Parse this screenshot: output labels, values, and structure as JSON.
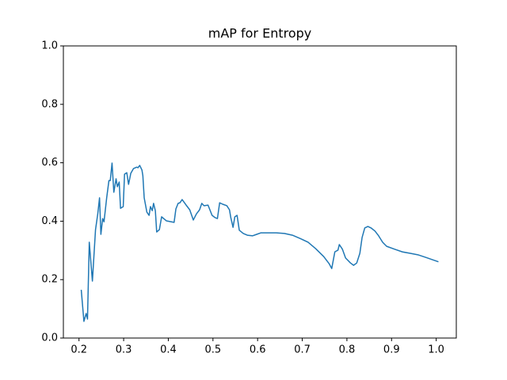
{
  "chart_data": {
    "type": "line",
    "title": "mAP for Entropy",
    "x": [
      0.205,
      0.211,
      0.216,
      0.219,
      0.223,
      0.23,
      0.237,
      0.242,
      0.246,
      0.249,
      0.253,
      0.256,
      0.262,
      0.267,
      0.27,
      0.274,
      0.278,
      0.283,
      0.286,
      0.29,
      0.293,
      0.299,
      0.302,
      0.307,
      0.311,
      0.316,
      0.322,
      0.329,
      0.332,
      0.336,
      0.341,
      0.343,
      0.346,
      0.352,
      0.357,
      0.36,
      0.364,
      0.367,
      0.371,
      0.374,
      0.38,
      0.385,
      0.396,
      0.413,
      0.417,
      0.422,
      0.426,
      0.431,
      0.44,
      0.448,
      0.456,
      0.463,
      0.47,
      0.475,
      0.48,
      0.489,
      0.498,
      0.505,
      0.51,
      0.515,
      0.522,
      0.531,
      0.537,
      0.54,
      0.545,
      0.549,
      0.554,
      0.559,
      0.568,
      0.577,
      0.589,
      0.598,
      0.607,
      0.625,
      0.642,
      0.66,
      0.678,
      0.695,
      0.713,
      0.73,
      0.748,
      0.76,
      0.766,
      0.773,
      0.78,
      0.783,
      0.79,
      0.797,
      0.808,
      0.815,
      0.822,
      0.829,
      0.834,
      0.84,
      0.847,
      0.854,
      0.863,
      0.871,
      0.88,
      0.889,
      0.907,
      0.924,
      0.942,
      0.959,
      0.977,
      1.005
    ],
    "series": [
      {
        "name": "mAP",
        "color": "#1f77b4",
        "values": [
          0.165,
          0.057,
          0.084,
          0.065,
          0.328,
          0.195,
          0.371,
          0.425,
          0.48,
          0.355,
          0.409,
          0.398,
          0.48,
          0.539,
          0.539,
          0.599,
          0.499,
          0.545,
          0.518,
          0.534,
          0.444,
          0.45,
          0.561,
          0.566,
          0.526,
          0.564,
          0.58,
          0.585,
          0.583,
          0.591,
          0.575,
          0.556,
          0.48,
          0.431,
          0.42,
          0.45,
          0.436,
          0.461,
          0.436,
          0.363,
          0.371,
          0.415,
          0.401,
          0.396,
          0.442,
          0.461,
          0.463,
          0.474,
          0.455,
          0.439,
          0.404,
          0.425,
          0.439,
          0.461,
          0.453,
          0.455,
          0.42,
          0.412,
          0.409,
          0.463,
          0.458,
          0.453,
          0.439,
          0.412,
          0.379,
          0.415,
          0.42,
          0.369,
          0.358,
          0.352,
          0.35,
          0.355,
          0.36,
          0.36,
          0.36,
          0.358,
          0.352,
          0.341,
          0.328,
          0.306,
          0.279,
          0.255,
          0.238,
          0.295,
          0.301,
          0.32,
          0.304,
          0.274,
          0.257,
          0.249,
          0.257,
          0.29,
          0.344,
          0.377,
          0.382,
          0.377,
          0.366,
          0.35,
          0.328,
          0.314,
          0.304,
          0.295,
          0.29,
          0.285,
          0.276,
          0.261
        ]
      }
    ],
    "xlim": [
      0.165,
      1.045
    ],
    "ylim": [
      0,
      1
    ],
    "xticks": [
      0.2,
      0.3,
      0.4,
      0.5,
      0.6,
      0.7,
      0.8,
      0.9,
      {
        "value": 1.0,
        "label": "1.0"
      }
    ],
    "yticks": [
      {
        "value": 0,
        "label": "0.0"
      },
      0.2,
      0.4,
      0.6,
      0.8,
      {
        "value": 1,
        "label": "1.0"
      }
    ]
  }
}
